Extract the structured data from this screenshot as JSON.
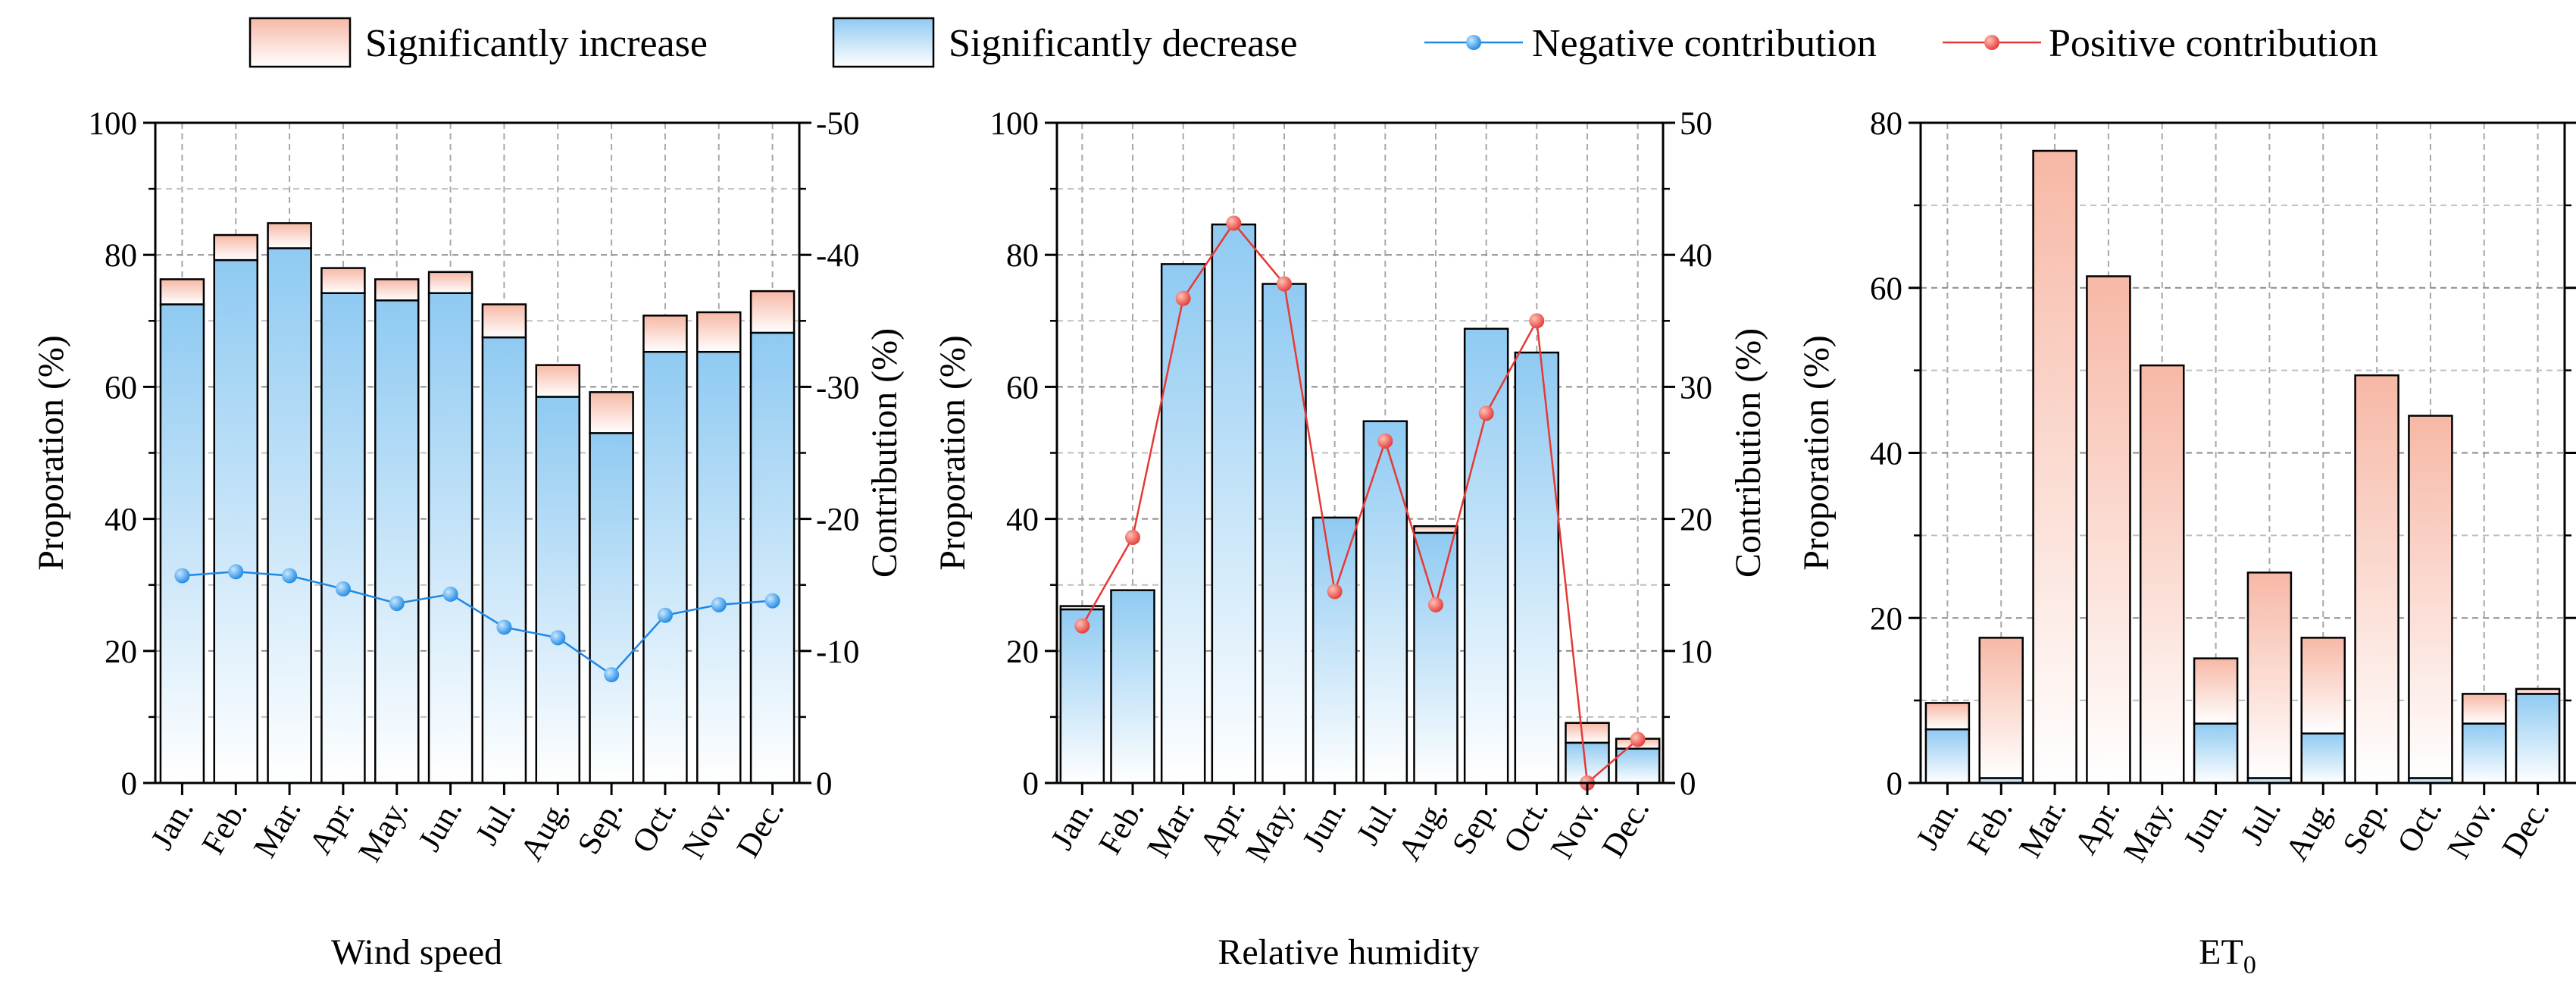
{
  "legend": {
    "increase": "Significantly increase",
    "decrease": "Significantly decrease",
    "negative": "Negative contribution",
    "positive": "Positive contribution"
  },
  "colors": {
    "increase_top": "#f7b8a6",
    "increase_bottom": "#ffffff",
    "decrease_top": "#8fcaf2",
    "decrease_bottom": "#ffffff",
    "negative_line": "#1e88e5",
    "positive_line": "#e53935"
  },
  "chart_data": [
    {
      "id": "wind",
      "type": "bar",
      "title": "",
      "xlabel": "Wind speed",
      "ylabel": "Proporation (%)",
      "y2label": "Contribution (%)",
      "categories": [
        "Jan.",
        "Feb.",
        "Mar.",
        "Apr.",
        "May.",
        "Jun.",
        "Jul.",
        "Aug.",
        "Sep.",
        "Oct.",
        "Nov.",
        "Dec."
      ],
      "ylim": [
        0,
        100
      ],
      "yticks": [
        0,
        20,
        40,
        60,
        80,
        100
      ],
      "y2lim": [
        0,
        -50
      ],
      "y2ticks": [
        0,
        -10,
        -20,
        -30,
        -40,
        -50
      ],
      "grid": true,
      "series": [
        {
          "name": "Significantly decrease",
          "kind": "bar",
          "values": [
            72.5,
            79.2,
            81.0,
            74.2,
            73.1,
            74.2,
            67.5,
            58.5,
            53.0,
            65.3,
            65.3,
            68.2
          ]
        },
        {
          "name": "Significantly increase",
          "kind": "bar",
          "values": [
            3.8,
            3.8,
            3.8,
            3.8,
            3.2,
            3.2,
            5.0,
            4.8,
            6.2,
            5.5,
            6.0,
            6.3
          ]
        },
        {
          "name": "Negative contribution",
          "kind": "line",
          "axis": "right",
          "values": [
            -15.7,
            -16.0,
            -15.7,
            -14.7,
            -13.6,
            -14.3,
            -11.8,
            -11.0,
            -8.2,
            -12.7,
            -13.5,
            -13.8
          ]
        }
      ]
    },
    {
      "id": "rh",
      "type": "bar",
      "title": "",
      "xlabel": "Relative humidity",
      "ylabel": "Proporation (%)",
      "y2label": "Contribution (%)",
      "categories": [
        "Jan.",
        "Feb.",
        "Mar.",
        "Apr.",
        "May.",
        "Jun.",
        "Jul.",
        "Aug.",
        "Sep.",
        "Oct.",
        "Nov.",
        "Dec."
      ],
      "ylim": [
        0,
        100
      ],
      "yticks": [
        0,
        20,
        40,
        60,
        80,
        100
      ],
      "y2lim": [
        0,
        50
      ],
      "y2ticks": [
        0,
        10,
        20,
        30,
        40,
        50
      ],
      "grid": true,
      "series": [
        {
          "name": "Significantly decrease",
          "kind": "bar",
          "values": [
            26.3,
            29.2,
            78.6,
            84.6,
            75.6,
            40.2,
            54.8,
            37.9,
            68.8,
            65.2,
            6.1,
            5.2
          ]
        },
        {
          "name": "Significantly increase",
          "kind": "bar",
          "values": [
            0.5,
            0.0,
            0.0,
            0.0,
            0.0,
            0.0,
            0.0,
            1.0,
            0.0,
            0.0,
            3.0,
            1.5
          ]
        },
        {
          "name": "Positive contribution",
          "kind": "line",
          "axis": "right",
          "values": [
            11.9,
            18.6,
            36.7,
            42.4,
            37.8,
            14.5,
            25.9,
            13.5,
            28.0,
            35.0,
            0.0,
            3.3
          ]
        }
      ]
    },
    {
      "id": "et0",
      "type": "bar",
      "title": "",
      "xlabel": "ET",
      "xlabel_sub": "0",
      "ylabel": "Proporation (%)",
      "categories": [
        "Jan.",
        "Feb.",
        "Mar.",
        "Apr.",
        "May.",
        "Jun.",
        "Jul.",
        "Aug.",
        "Sep.",
        "Oct.",
        "Nov.",
        "Dec."
      ],
      "ylim": [
        0,
        80
      ],
      "yticks": [
        0,
        20,
        40,
        60,
        80
      ],
      "grid": true,
      "series": [
        {
          "name": "Significantly decrease",
          "kind": "bar",
          "values": [
            6.5,
            0.6,
            0.0,
            0.0,
            0.0,
            7.2,
            0.6,
            6.0,
            0.0,
            0.6,
            7.2,
            10.8
          ]
        },
        {
          "name": "Significantly increase",
          "kind": "bar",
          "values": [
            3.2,
            17.0,
            76.6,
            61.4,
            50.6,
            7.9,
            24.9,
            11.6,
            49.4,
            43.9,
            3.6,
            0.6
          ]
        }
      ]
    }
  ]
}
